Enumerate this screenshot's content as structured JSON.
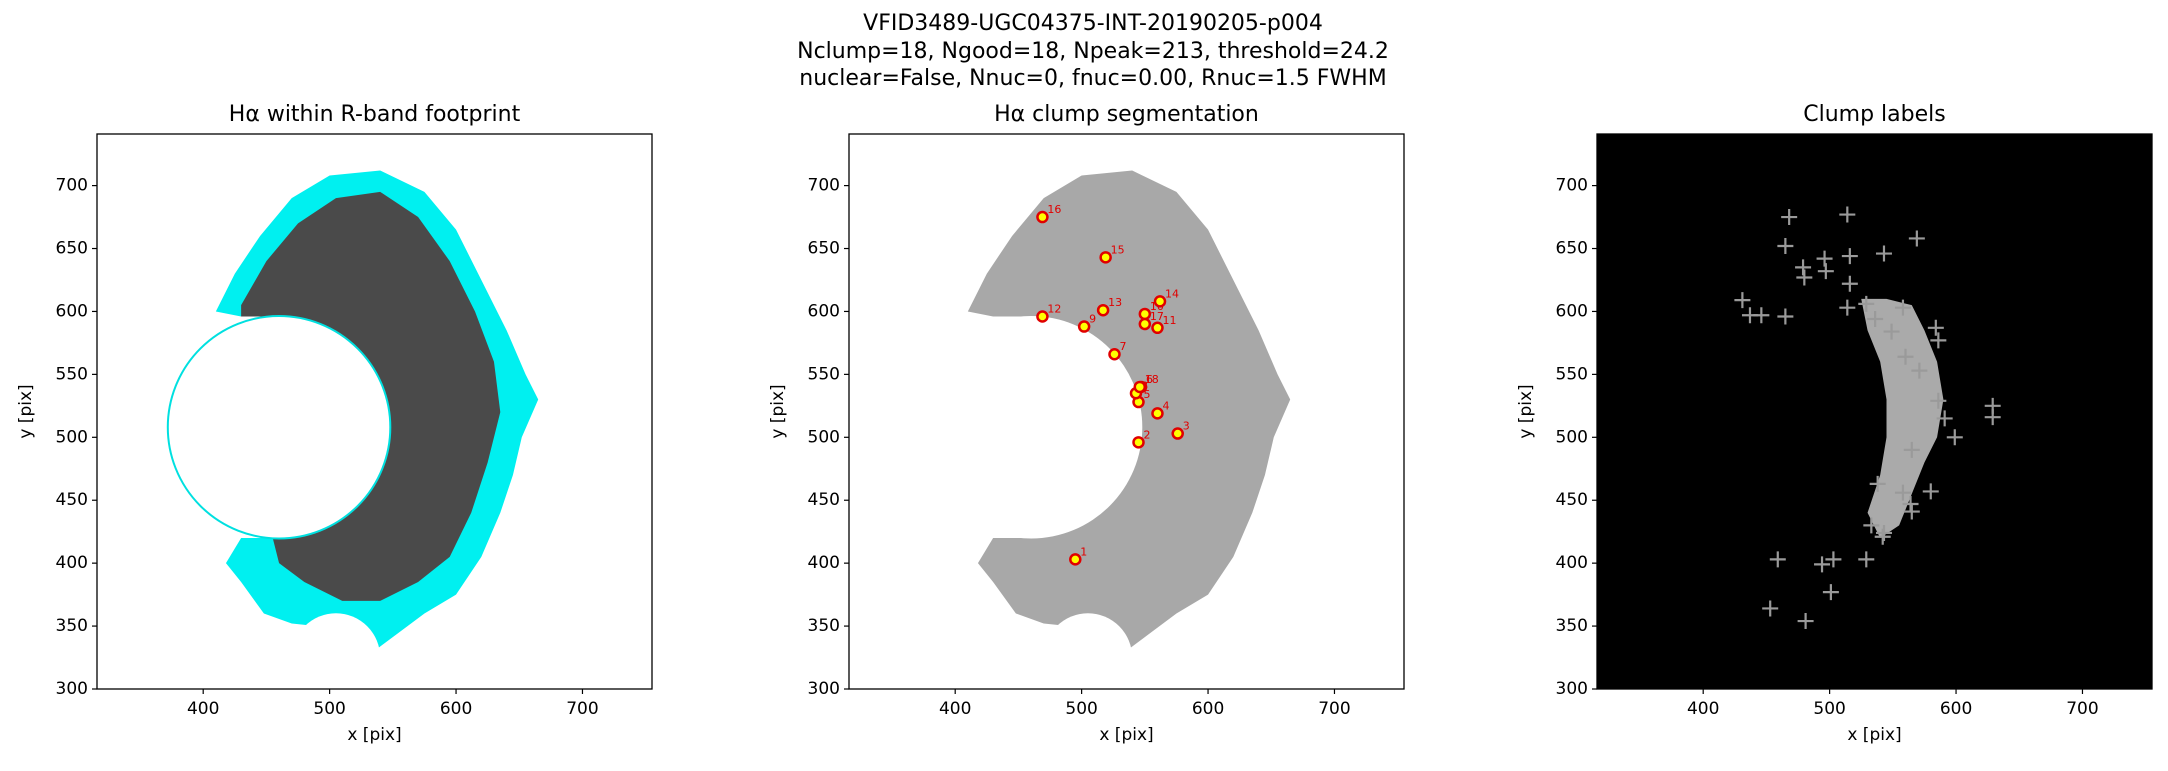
{
  "suptitle": [
    "VFID3489-UGC04375-INT-20190205-p004",
    "Nclump=18, Ngood=18, Npeak=213, threshold=24.2",
    "nuclear=False, Nnuc=0, fnuc=0.00, Rnuc=1.5 FWHM"
  ],
  "chart_data": [
    {
      "type": "image",
      "title": "Hα within R-band footprint",
      "xlabel": "x [pix]",
      "ylabel": "y [pix]",
      "xlim": [
        316,
        755
      ],
      "ylim": [
        300,
        741
      ],
      "xticks": [
        400,
        500,
        600,
        700
      ],
      "yticks": [
        300,
        350,
        400,
        450,
        500,
        550,
        600,
        650,
        700
      ]
    },
    {
      "type": "clumps",
      "title": "Hα clump segmentation",
      "xlabel": "x [pix]",
      "ylabel": "y [pix]",
      "xlim": [
        316,
        755
      ],
      "ylim": [
        300,
        741
      ],
      "xticks": [
        400,
        500,
        600,
        700
      ],
      "yticks": [
        300,
        350,
        400,
        450,
        500,
        550,
        600,
        650,
        700
      ],
      "point_labels": [
        "1",
        "2",
        "3",
        "4",
        "5",
        "6",
        "7",
        "8",
        "9",
        "10",
        "11",
        "12",
        "13",
        "14",
        "15",
        "16",
        "17",
        "18"
      ],
      "x": [
        495,
        545,
        576,
        560,
        545,
        547,
        526,
        543,
        502,
        550,
        560,
        469,
        517,
        562,
        519,
        469,
        550,
        546
      ],
      "values": [
        403,
        496,
        503,
        519,
        528,
        540,
        566,
        535,
        588,
        598,
        587,
        596,
        601,
        608,
        643,
        675,
        590,
        540
      ]
    },
    {
      "type": "peaks",
      "title": "Clump labels",
      "xlabel": "x [pix]",
      "ylabel": "y [pix]",
      "xlim": [
        316,
        755
      ],
      "ylim": [
        300,
        741
      ],
      "xticks": [
        400,
        500,
        600,
        700
      ],
      "yticks": [
        300,
        350,
        400,
        450,
        500,
        550,
        600,
        650,
        700
      ],
      "x": [
        468,
        514,
        465,
        569,
        543,
        479,
        496,
        516,
        480,
        497,
        431,
        437,
        446,
        465,
        514,
        516,
        529,
        536,
        558,
        549,
        584,
        586,
        560,
        571,
        586,
        599,
        591,
        565,
        538,
        558,
        565,
        580,
        533,
        542,
        503,
        494,
        459,
        453,
        481,
        501,
        529,
        543,
        564,
        629,
        629
      ],
      "values": [
        675,
        677,
        652,
        658,
        646,
        635,
        642,
        644,
        627,
        632,
        609,
        597,
        597,
        596,
        603,
        622,
        606,
        594,
        603,
        584,
        587,
        577,
        564,
        553,
        529,
        500,
        515,
        490,
        463,
        456,
        441,
        457,
        430,
        421,
        403,
        399,
        403,
        364,
        354,
        377,
        403,
        424,
        447,
        525,
        516
      ]
    }
  ]
}
